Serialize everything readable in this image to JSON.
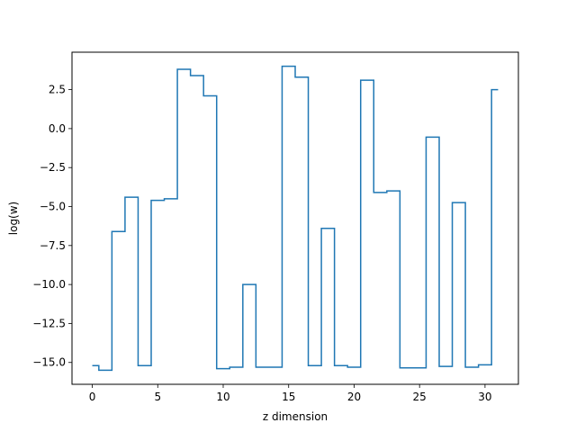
{
  "chart_data": {
    "type": "line",
    "step": "mid",
    "title": "",
    "xlabel": "z dimension",
    "ylabel": "log(w)",
    "xlim": [
      -1.55,
      32.55
    ],
    "ylim": [
      -16.4,
      4.9
    ],
    "xticks": [
      0,
      5,
      10,
      15,
      20,
      25,
      30
    ],
    "xtick_labels": [
      "0",
      "5",
      "10",
      "15",
      "20",
      "25",
      "30"
    ],
    "yticks": [
      -15.0,
      -12.5,
      -10.0,
      -7.5,
      -5.0,
      -2.5,
      0.0,
      2.5
    ],
    "ytick_labels": [
      "−15.0",
      "−12.5",
      "−10.0",
      "−7.5",
      "−5.0",
      "−2.5",
      "0.0",
      "2.5"
    ],
    "grid": false,
    "line_color": "#1f77b4",
    "series": [
      {
        "x": [
          0,
          1,
          2,
          3,
          4,
          5,
          6,
          7,
          8,
          9,
          10,
          11,
          12,
          13,
          14,
          15,
          16,
          17,
          18,
          19,
          20,
          21,
          22,
          23,
          24,
          25,
          26,
          27,
          28,
          29,
          30,
          31
        ],
        "values": [
          -15.2,
          -15.5,
          -6.6,
          -4.4,
          -15.2,
          -4.6,
          -4.5,
          3.8,
          3.4,
          2.1,
          -15.4,
          -15.3,
          -10.0,
          -15.3,
          -15.3,
          4.0,
          3.3,
          -15.2,
          -6.4,
          -15.2,
          -15.3,
          3.1,
          -4.1,
          -4.0,
          -15.35,
          -15.35,
          -0.55,
          -15.25,
          -4.75,
          -15.3,
          -15.15,
          2.5
        ]
      }
    ]
  }
}
